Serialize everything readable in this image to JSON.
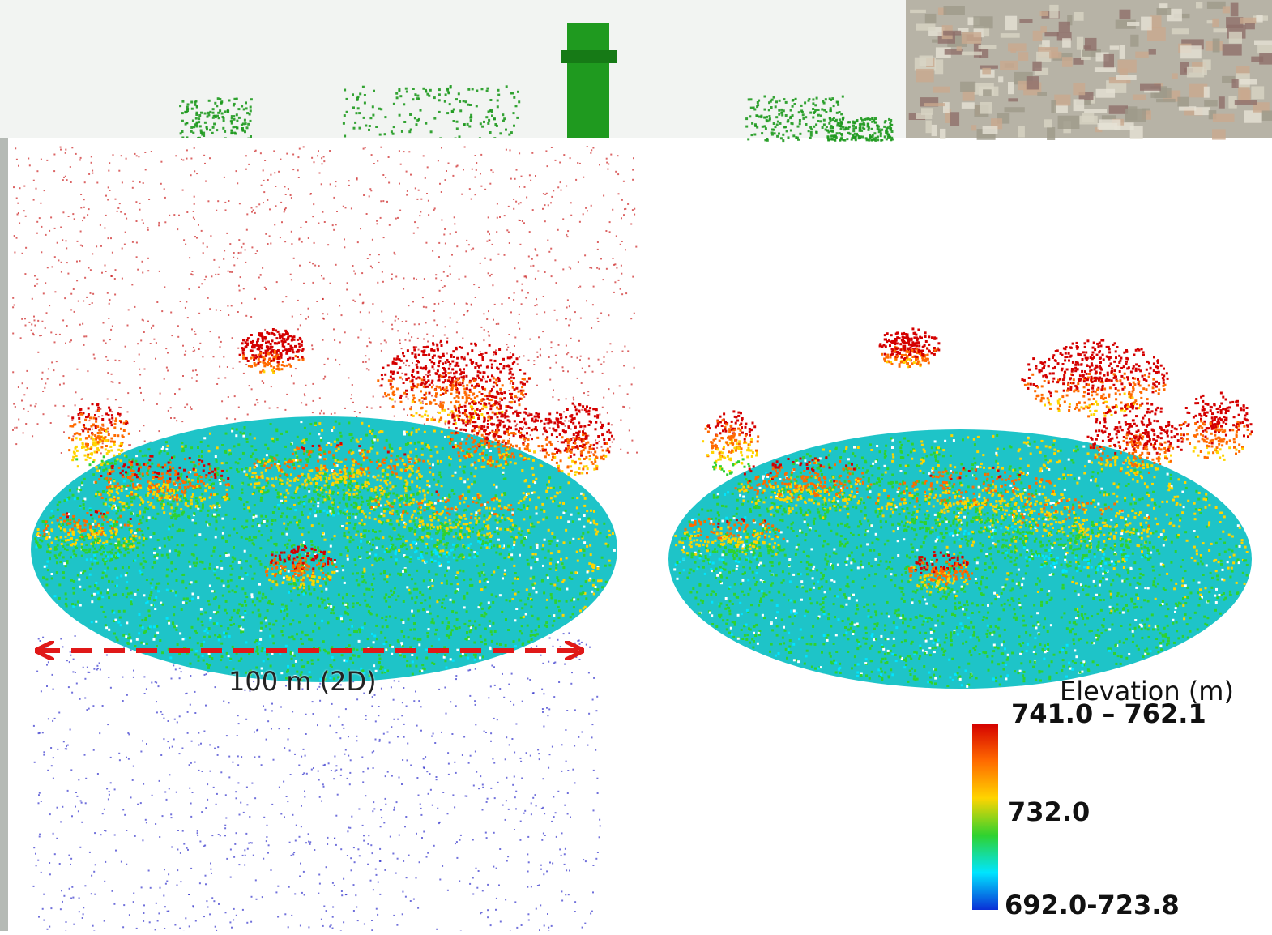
{
  "scale_bar": {
    "label": "100 m (2D)"
  },
  "legend": {
    "title": "Elevation (m)",
    "max_label": "741.0 – 762.1",
    "mid_label": "732.0",
    "min_label": "692.0-723.8",
    "colors": [
      "#d40000",
      "#ff6a00",
      "#ffd400",
      "#2fd22f",
      "#00e5ff",
      "#0a2fd6"
    ]
  },
  "colors": {
    "noise_high": "#cc2222",
    "noise_low": "#3333cc",
    "scale_arrow": "#e01818",
    "ground": "#1ec4c8",
    "background_vegetation": "#1f9a1f"
  }
}
